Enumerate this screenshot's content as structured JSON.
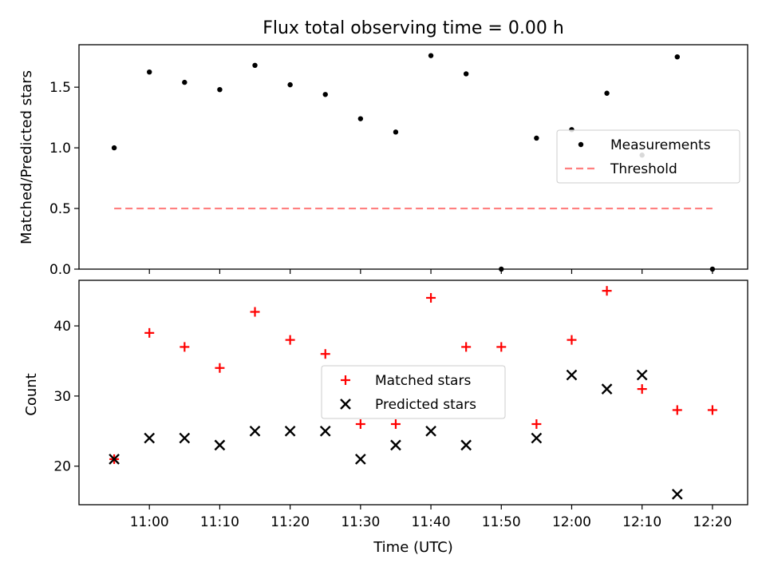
{
  "chart_data": [
    {
      "type": "scatter",
      "title": "Flux total observing time = 0.00 h",
      "xlabel": "",
      "ylabel": "Matched/Predicted stars",
      "xlim": [
        "10:50",
        "12:25"
      ],
      "ylim": [
        0,
        1.85
      ],
      "yticks": [
        0.0,
        0.5,
        1.0,
        1.5
      ],
      "ytick_labels": [
        "0.0",
        "0.5",
        "1.0",
        "1.5"
      ],
      "legend": {
        "position": "center-right"
      },
      "series": [
        {
          "name": "Measurements",
          "kind": "scatter",
          "marker": "dot",
          "color": "#000000",
          "x": [
            "10:55",
            "11:00",
            "11:05",
            "11:10",
            "11:15",
            "11:20",
            "11:25",
            "11:30",
            "11:35",
            "11:40",
            "11:45",
            "11:50",
            "11:55",
            "12:00",
            "12:05",
            "12:10",
            "12:15",
            "12:20"
          ],
          "y": [
            1.0,
            1.625,
            1.54,
            1.48,
            1.68,
            1.52,
            1.44,
            1.24,
            1.13,
            1.76,
            1.61,
            0.0,
            1.08,
            1.15,
            1.45,
            0.94,
            1.75,
            0.0
          ]
        },
        {
          "name": "Threshold",
          "kind": "line",
          "style": "dashed",
          "color": "#ff7f7f",
          "x": [
            "10:55",
            "12:20"
          ],
          "y": [
            0.5,
            0.5
          ]
        }
      ]
    },
    {
      "type": "scatter",
      "title": "",
      "xlabel": "Time (UTC)",
      "ylabel": "Count",
      "xlim": [
        "10:50",
        "12:25"
      ],
      "ylim": [
        14.5,
        46.5
      ],
      "xticks": [
        "11:00",
        "11:10",
        "11:20",
        "11:30",
        "11:40",
        "11:50",
        "12:00",
        "12:10",
        "12:20"
      ],
      "yticks": [
        20,
        30,
        40
      ],
      "ytick_labels": [
        "20",
        "30",
        "40"
      ],
      "legend": {
        "position": "center"
      },
      "series": [
        {
          "name": "Matched stars",
          "kind": "scatter",
          "marker": "plus",
          "color": "#ff0000",
          "x": [
            "10:55",
            "11:00",
            "11:05",
            "11:10",
            "11:15",
            "11:20",
            "11:25",
            "11:30",
            "11:35",
            "11:40",
            "11:45",
            "11:50",
            "11:55",
            "12:00",
            "12:05",
            "12:10",
            "12:15",
            "12:20"
          ],
          "y": [
            21,
            39,
            37,
            34,
            42,
            38,
            36,
            26,
            26,
            44,
            37,
            37,
            26,
            38,
            45,
            31,
            28,
            28
          ]
        },
        {
          "name": "Predicted stars",
          "kind": "scatter",
          "marker": "x",
          "color": "#000000",
          "x": [
            "10:55",
            "11:00",
            "11:05",
            "11:10",
            "11:15",
            "11:20",
            "11:25",
            "11:30",
            "11:35",
            "11:40",
            "11:45",
            "11:55",
            "12:00",
            "12:05",
            "12:10",
            "12:15"
          ],
          "y": [
            21,
            24,
            24,
            23,
            25,
            25,
            25,
            21,
            23,
            25,
            23,
            24,
            33,
            31,
            33,
            16
          ]
        }
      ]
    }
  ]
}
